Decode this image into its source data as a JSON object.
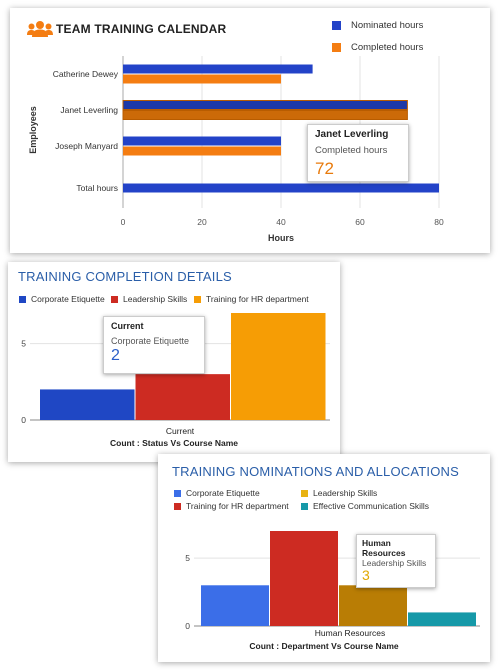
{
  "charts": {
    "team": {
      "title": "TEAM TRAINING CALENDAR",
      "legend": [
        "Nominated hours",
        "Completed hours"
      ],
      "colors": [
        "#2343c8",
        "#f47d12"
      ],
      "xlabel": "Hours",
      "ylabel": "Employees",
      "tooltip": {
        "title": "Janet Leverling",
        "series": "Completed hours",
        "value": "72"
      }
    },
    "completion": {
      "title": "TRAINING COMPLETION DETAILS",
      "legend": [
        "Corporate Etiquette",
        "Leadership Skills",
        "Training for HR department"
      ],
      "colors": [
        "#1f47c4",
        "#cd2b22",
        "#f69d05"
      ],
      "category": "Current",
      "subtitle": "Count : Status Vs Course Name",
      "tooltip": {
        "title": "Current",
        "series": "Corporate Etiquette",
        "value": "2"
      }
    },
    "nominations": {
      "title": "TRAINING NOMINATIONS AND ALLOCATIONS",
      "legend": [
        "Corporate Etiquette",
        "Leadership Skills",
        "Training for HR department",
        "Effective Communication Skills"
      ],
      "legend_order": [
        0,
        2,
        1,
        3
      ],
      "colors": [
        "#3b6ee8",
        "#e8b312",
        "#cd2b22",
        "#1699a8"
      ],
      "category": "Human Resources",
      "subtitle": "Count : Department Vs Course Name",
      "tooltip": {
        "title_lines": [
          "Human",
          "Resources"
        ],
        "series": "Leadership Skills",
        "value": "3"
      }
    }
  },
  "chart_data": [
    {
      "type": "bar",
      "orientation": "horizontal",
      "title": "TEAM TRAINING CALENDAR",
      "categories": [
        "Catherine Dewey",
        "Janet Leverling",
        "Joseph Manyard",
        "Total hours"
      ],
      "series": [
        {
          "name": "Nominated hours",
          "values": [
            48,
            72,
            40,
            80
          ]
        },
        {
          "name": "Completed hours",
          "values": [
            40,
            72,
            40,
            null
          ]
        }
      ],
      "highlight": {
        "category_index": 1,
        "series_index": 1
      },
      "xlabel": "Hours",
      "ylabel": "Employees",
      "xlim": [
        0,
        80
      ],
      "xticks": [
        0,
        20,
        40,
        60,
        80
      ],
      "legend": "top-right"
    },
    {
      "type": "bar",
      "title": "TRAINING COMPLETION DETAILS",
      "categories": [
        "Current"
      ],
      "series": [
        {
          "name": "Corporate Etiquette",
          "values": [
            2
          ]
        },
        {
          "name": "Leadership Skills",
          "values": [
            3
          ]
        },
        {
          "name": "Training for HR department",
          "values": [
            7
          ]
        }
      ],
      "ylim": [
        0,
        7
      ],
      "yticks": [
        0,
        5
      ],
      "xlabel": "Count : Status Vs Course Name",
      "legend": "top"
    },
    {
      "type": "bar",
      "title": "TRAINING NOMINATIONS AND ALLOCATIONS",
      "categories": [
        "Human Resources"
      ],
      "series": [
        {
          "name": "Corporate Etiquette",
          "values": [
            3
          ]
        },
        {
          "name": "Training for HR department",
          "values": [
            7
          ]
        },
        {
          "name": "Leadership Skills",
          "values": [
            3
          ]
        },
        {
          "name": "Effective Communication Skills",
          "values": [
            1
          ]
        }
      ],
      "highlight": {
        "series_index": 2
      },
      "ylim": [
        0,
        7
      ],
      "yticks": [
        0,
        5
      ],
      "xlabel": "Count : Department Vs Course Name",
      "legend": "top"
    }
  ]
}
